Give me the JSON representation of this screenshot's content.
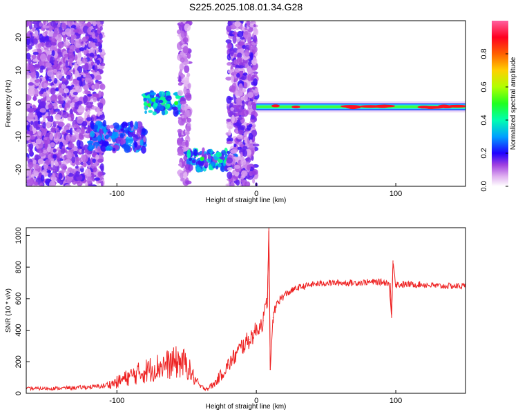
{
  "title": "S225.2025.108.01.34.G28",
  "chart_data": [
    {
      "type": "heatmap",
      "xlabel": "Height of straight line (km)",
      "ylabel": "Frequency (Hz)",
      "xlim": [
        -165,
        150
      ],
      "ylim": [
        -25,
        25
      ],
      "xticks": [
        -100,
        0,
        100
      ],
      "yticks": [
        -20,
        -10,
        0,
        10,
        20
      ],
      "colorbar": {
        "label": "Normalized spectral amplitude",
        "range": [
          0,
          1
        ],
        "ticks": [
          0.0,
          0.2,
          0.4,
          0.6,
          0.8
        ],
        "tick_labels": [
          "0.0",
          "0.2",
          "0.4",
          "0.6",
          "0.8"
        ],
        "colormap": [
          "#ffffff",
          "#d9a6f0",
          "#8a2be2",
          "#0000ff",
          "#00c8ff",
          "#00ff40",
          "#ffff00",
          "#ff8000",
          "#ff0000",
          "#ff66cc"
        ]
      },
      "features": [
        {
          "segment": "scattered low-amplitude noise",
          "x": [
            -165,
            -110
          ],
          "freq": [
            -25,
            25
          ],
          "amplitude": 0.15
        },
        {
          "segment": "rising ridge",
          "x": [
            -120,
            -80
          ],
          "freq": [
            -14,
            -6
          ],
          "amplitude": 0.25
        },
        {
          "segment": "ridge near 0 Hz",
          "x": [
            -80,
            -52
          ],
          "freq": [
            -3,
            3
          ],
          "amplitude": 0.35
        },
        {
          "segment": "noise column",
          "x": [
            -55,
            -48
          ],
          "freq": [
            -25,
            25
          ],
          "amplitude": 0.12
        },
        {
          "segment": "ridge near -18 Hz",
          "x": [
            -50,
            -15
          ],
          "freq": [
            -20,
            -14
          ],
          "amplitude": 0.35
        },
        {
          "segment": "noise band",
          "x": [
            -20,
            0
          ],
          "freq": [
            -25,
            25
          ],
          "amplitude": 0.15
        },
        {
          "segment": "strong line near -1 Hz",
          "x": [
            0,
            150
          ],
          "freq": [
            -2,
            0
          ],
          "amplitude": 0.95
        }
      ]
    },
    {
      "type": "line",
      "xlabel": "Height of straight line (km)",
      "ylabel": "SNR (10 * v/v)",
      "xlim": [
        -165,
        150
      ],
      "ylim": [
        0,
        1050
      ],
      "xticks": [
        -100,
        0,
        100
      ],
      "yticks": [
        0,
        200,
        400,
        600,
        800,
        1000
      ],
      "color": "#ee2222",
      "series": [
        {
          "x": [
            -165,
            -150,
            -130,
            -110,
            -100,
            -90,
            -80,
            -70,
            -60,
            -55,
            -50,
            -45,
            -40,
            -35,
            -30,
            -25,
            -20,
            -15,
            -10,
            -5,
            0,
            5,
            8,
            9,
            10,
            12,
            15,
            20,
            25,
            30,
            40,
            50,
            60,
            70,
            80,
            90,
            95,
            97,
            98,
            100,
            110,
            120,
            130,
            140,
            150
          ],
          "y": [
            30,
            30,
            35,
            45,
            70,
            110,
            140,
            170,
            190,
            200,
            180,
            100,
            40,
            30,
            60,
            120,
            180,
            240,
            300,
            340,
            400,
            460,
            600,
            1050,
            150,
            480,
            580,
            620,
            650,
            670,
            690,
            700,
            700,
            700,
            705,
            705,
            700,
            480,
            840,
            690,
            690,
            690,
            680,
            680,
            680
          ],
          "noise_amplitude": [
            10,
            10,
            12,
            15,
            40,
            60,
            80,
            90,
            100,
            110,
            90,
            50,
            15,
            15,
            25,
            40,
            50,
            60,
            60,
            60,
            60,
            60,
            60,
            0,
            0,
            40,
            30,
            25,
            20,
            20,
            20,
            20,
            20,
            20,
            20,
            20,
            20,
            0,
            0,
            25,
            20,
            20,
            20,
            20,
            20
          ]
        }
      ]
    }
  ]
}
